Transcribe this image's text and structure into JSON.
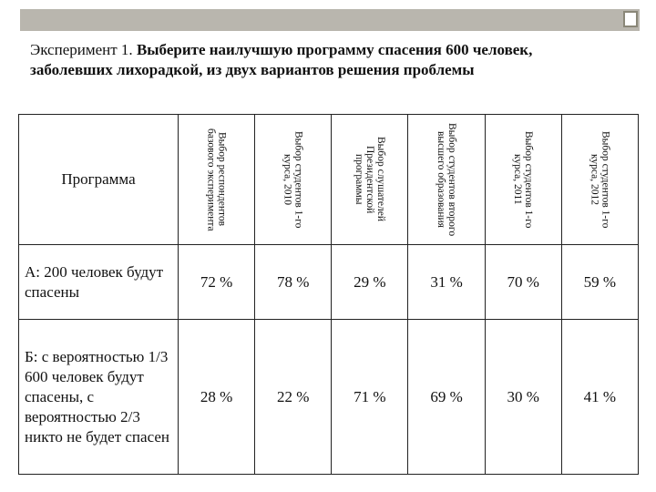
{
  "title": {
    "prefix": "Эксперимент 1.",
    "text": "Выберите наилучшую программу спасения 600 человек, заболевших лихорадкой, из двух вариантов решения проблемы"
  },
  "table": {
    "corner": "Программа",
    "columns": [
      "Выбор респондентов базового эксперимента",
      "Выбор студентов 1-го курса, 2010",
      "Выбор слушателей Президентской программы",
      "Выбор студентов второго высшего образования",
      "Выбор студентов 1-го курса, 2011",
      "Выбор студентов 1-го курса, 2012"
    ],
    "rows": [
      {
        "label": "А: 200 человек будут спасены",
        "values": [
          "72 %",
          "78 %",
          "29 %",
          "31 %",
          "70 %",
          "59 %"
        ]
      },
      {
        "label": "Б: с вероятностью 1/3 600 человек будут спасены, с вероятностью 2/3 никто не будет спасен",
        "values": [
          "28 %",
          "22 %",
          "71 %",
          "69 %",
          "30 %",
          "41 %"
        ]
      }
    ]
  }
}
